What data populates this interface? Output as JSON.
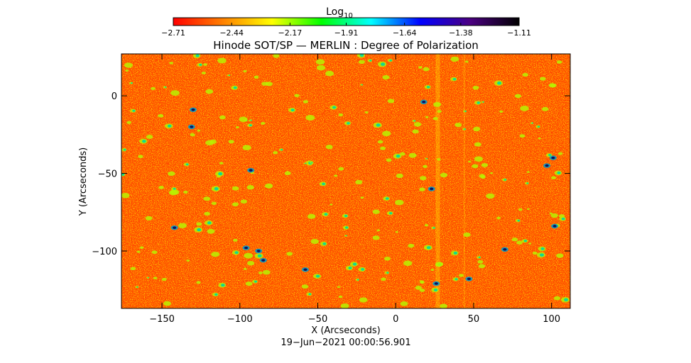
{
  "chart_data": {
    "type": "heatmap",
    "title": "Hinode SOT/SP — MERLIN : Degree of Polarization",
    "xlabel": "X (Arcseconds)",
    "ylabel": "Y (Arcseconds)",
    "xlim": [
      -176,
      112
    ],
    "ylim": [
      -137,
      27
    ],
    "x_ticks": [
      -150,
      -100,
      -50,
      0,
      50,
      100
    ],
    "x_tick_labels": [
      "−150",
      "−100",
      "−50",
      "0",
      "50",
      "100"
    ],
    "y_ticks": [
      0,
      -50,
      -100
    ],
    "y_tick_labels": [
      "0",
      "−50",
      "−100"
    ],
    "colorbar": {
      "title": "Log",
      "title_subscript": "10",
      "min": -2.71,
      "max": -1.11,
      "ticks": [
        -2.71,
        -2.44,
        -2.17,
        -1.91,
        -1.64,
        -1.38,
        -1.11
      ],
      "tick_labels": [
        "−2.71",
        "−2.44",
        "−2.17",
        "−1.91",
        "−1.64",
        "−1.38",
        "−1.11"
      ],
      "colormap": [
        "#ff0000",
        "#ff8000",
        "#ffff00",
        "#00ff00",
        "#00ffff",
        "#0000ff",
        "#4b0082",
        "#000000"
      ]
    },
    "grid": false
  },
  "footer": {
    "timestamp": "19−Jun−2021 00:00:56.901"
  }
}
